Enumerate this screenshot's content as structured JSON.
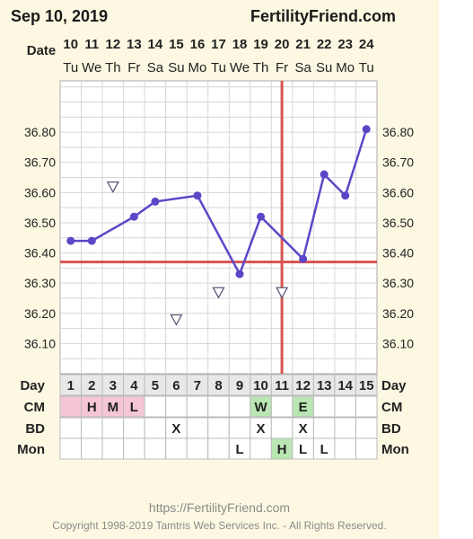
{
  "header": {
    "date": "Sep 10, 2019",
    "brand": "FertilityFriend.com"
  },
  "footer": {
    "url": "https://FertilityFriend.com",
    "copyright": "Copyright 1998-2019 Tamtris Web Services Inc. - All Rights Reserved."
  },
  "chart_data": {
    "type": "line",
    "date_label": "Date",
    "dates": [
      "10",
      "11",
      "12",
      "13",
      "14",
      "15",
      "16",
      "17",
      "18",
      "19",
      "20",
      "21",
      "22",
      "23",
      "24"
    ],
    "weekdays": [
      "Tu",
      "We",
      "Th",
      "Fr",
      "Sa",
      "Su",
      "Mo",
      "Tu",
      "We",
      "Th",
      "Fr",
      "Sa",
      "Su",
      "Mo",
      "Tu"
    ],
    "cycle_days": [
      "1",
      "2",
      "3",
      "4",
      "5",
      "6",
      "7",
      "8",
      "9",
      "10",
      "11",
      "12",
      "13",
      "14",
      "15"
    ],
    "y_ticks": [
      "36.80",
      "36.70",
      "36.60",
      "36.50",
      "36.40",
      "36.30",
      "36.20",
      "36.10"
    ],
    "ylim": [
      36.0,
      36.97
    ],
    "temperatures": [
      36.44,
      36.44,
      36.62,
      36.52,
      36.57,
      36.18,
      36.59,
      36.27,
      36.33,
      36.52,
      36.27,
      36.38,
      36.66,
      36.59,
      36.81
    ],
    "discarded_days": [
      3,
      6,
      8,
      11
    ],
    "coverline": 36.37,
    "ovulation_day": 11,
    "grid": true,
    "series_color": "#5c46c8",
    "line_color_cover": "#d9534f",
    "rows": [
      {
        "label": "Day",
        "values": [
          "1",
          "2",
          "3",
          "4",
          "5",
          "6",
          "7",
          "8",
          "9",
          "10",
          "11",
          "12",
          "13",
          "14",
          "15"
        ]
      },
      {
        "label": "CM",
        "values": [
          "",
          "H",
          "M",
          "L",
          "",
          "",
          "",
          "",
          "",
          "W",
          "",
          "E",
          "",
          "",
          ""
        ],
        "fills": [
          "#f5c6d6",
          "#f5c6d6",
          "#f5c6d6",
          "#f5c6d6",
          "",
          "",
          "",
          "",
          "",
          "#b9e6b3",
          "",
          "#b9e6b3",
          "",
          "",
          ""
        ]
      },
      {
        "label": "BD",
        "values": [
          "",
          "",
          "",
          "",
          "",
          "X",
          "",
          "",
          "",
          "X",
          "",
          "X",
          "",
          "",
          ""
        ]
      },
      {
        "label": "Mon",
        "values": [
          "",
          "",
          "",
          "",
          "",
          "",
          "",
          "",
          "L",
          "",
          "H",
          "L",
          "L",
          "",
          ""
        ],
        "fills": [
          "",
          "",
          "",
          "",
          "",
          "",
          "",
          "",
          "",
          "",
          "#b9e6b3",
          "",
          "",
          "",
          ""
        ]
      }
    ]
  }
}
